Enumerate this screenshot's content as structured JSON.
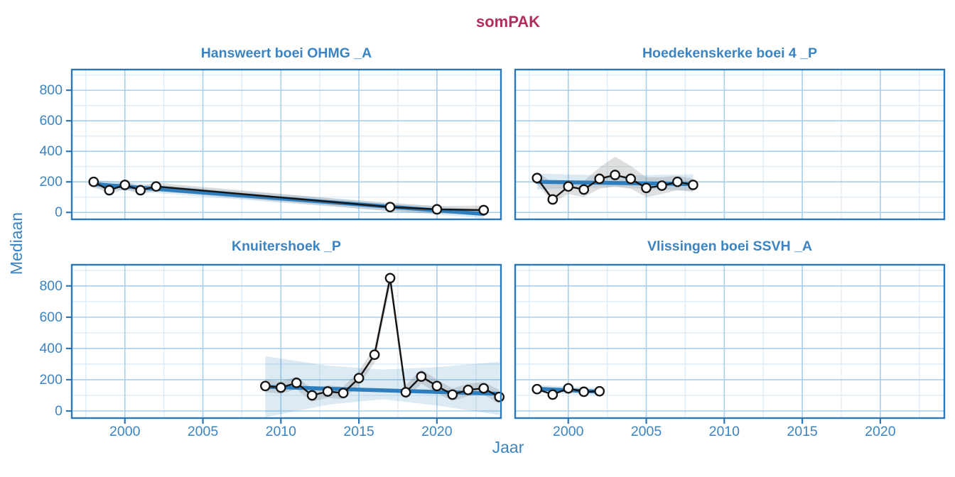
{
  "title": "somPAK",
  "colors": {
    "title": "#b22d5f",
    "axis_text": "#3b84c3",
    "panel_border": "#2e77b5",
    "grid_major": "#a9cfe9",
    "grid_minor": "#dcebf7",
    "trend_line": "#2e7ebd",
    "trend_band": "rgba(49,130,189,0.17)",
    "loess_band": "rgba(110,110,110,0.22)",
    "data_line": "#141414",
    "point_fill": "#ffffff"
  },
  "chart_data": {
    "type": "line",
    "title": "somPAK",
    "xlabel": "Jaar",
    "ylabel": "Mediaan",
    "x_ticks": [
      2000,
      2005,
      2010,
      2015,
      2020
    ],
    "y_ticks": [
      0,
      200,
      400,
      600,
      800
    ],
    "x_range": [
      1996.55,
      2024.15
    ],
    "y_range": [
      -50,
      940
    ],
    "x_minor_step": 2.5,
    "y_minor_step": 100,
    "grid": "on",
    "legend": "none",
    "panels": [
      {
        "title": "Hansweert boei OHMG _A",
        "points": [
          [
            1998,
            200
          ],
          [
            1999,
            145
          ],
          [
            2000,
            180
          ],
          [
            2001,
            145
          ],
          [
            2002,
            170
          ],
          [
            2017,
            35
          ],
          [
            2020,
            20
          ],
          [
            2023,
            15
          ]
        ],
        "trend": [
          [
            1998,
            185
          ],
          [
            2023,
            -10
          ]
        ],
        "trend_band": [
          [
            1998,
            158,
            212
          ],
          [
            2023,
            -38,
            18
          ]
        ],
        "loess_band": [
          [
            1998,
            170,
            225
          ],
          [
            1999,
            120,
            172
          ],
          [
            2000,
            152,
            205
          ],
          [
            2001,
            122,
            170
          ],
          [
            2002,
            140,
            195
          ],
          [
            2017,
            8,
            58
          ],
          [
            2020,
            -8,
            42
          ],
          [
            2023,
            -12,
            45
          ]
        ]
      },
      {
        "title": "Hoedekenskerke boei 4 _P",
        "points": [
          [
            1998,
            225
          ],
          [
            1999,
            85
          ],
          [
            2000,
            170
          ],
          [
            2001,
            150
          ],
          [
            2002,
            220
          ],
          [
            2003,
            245
          ],
          [
            2004,
            220
          ],
          [
            2005,
            160
          ],
          [
            2006,
            175
          ],
          [
            2007,
            200
          ],
          [
            2008,
            180
          ]
        ],
        "trend": [
          [
            1998,
            200
          ],
          [
            2008,
            185
          ]
        ],
        "trend_band": [
          [
            1998,
            150,
            255
          ],
          [
            2003,
            165,
            240
          ],
          [
            2008,
            140,
            250
          ]
        ],
        "loess_band": [
          [
            1998,
            185,
            270
          ],
          [
            1999,
            65,
            190
          ],
          [
            2000,
            120,
            210
          ],
          [
            2001,
            100,
            205
          ],
          [
            2002,
            155,
            295
          ],
          [
            2003,
            170,
            365
          ],
          [
            2004,
            155,
            305
          ],
          [
            2005,
            100,
            230
          ],
          [
            2006,
            120,
            230
          ],
          [
            2007,
            145,
            240
          ],
          [
            2008,
            135,
            220
          ]
        ]
      },
      {
        "title": "Knuitershoek _P",
        "points": [
          [
            2009,
            160
          ],
          [
            2010,
            150
          ],
          [
            2011,
            180
          ],
          [
            2012,
            100
          ],
          [
            2013,
            125
          ],
          [
            2014,
            115
          ],
          [
            2015,
            210
          ],
          [
            2016,
            360
          ],
          [
            2017,
            850
          ],
          [
            2018,
            120
          ],
          [
            2019,
            220
          ],
          [
            2020,
            160
          ],
          [
            2021,
            105
          ],
          [
            2022,
            135
          ],
          [
            2023,
            145
          ],
          [
            2024,
            90
          ]
        ],
        "trend": [
          [
            2009,
            155
          ],
          [
            2024,
            110
          ]
        ],
        "trend_band": [
          [
            2009,
            -40,
            350
          ],
          [
            2013,
            40,
            290
          ],
          [
            2016.5,
            75,
            265
          ],
          [
            2020,
            35,
            280
          ],
          [
            2024,
            -25,
            315
          ]
        ],
        "loess_band": [
          [
            2009,
            120,
            200
          ],
          [
            2010,
            110,
            190
          ],
          [
            2011,
            140,
            220
          ],
          [
            2012,
            60,
            140
          ],
          [
            2013,
            85,
            165
          ],
          [
            2014,
            75,
            155
          ],
          [
            2015,
            165,
            255
          ],
          [
            2016,
            310,
            410
          ],
          [
            2017,
            790,
            900
          ],
          [
            2018,
            75,
            165
          ],
          [
            2019,
            175,
            265
          ],
          [
            2020,
            115,
            200
          ],
          [
            2021,
            65,
            145
          ],
          [
            2022,
            95,
            175
          ],
          [
            2023,
            105,
            185
          ],
          [
            2024,
            45,
            135
          ]
        ]
      },
      {
        "title": "Vlissingen boei SSVH _A",
        "points": [
          [
            1998,
            140
          ],
          [
            1999,
            105
          ],
          [
            2000,
            145
          ],
          [
            2001,
            123
          ],
          [
            2002,
            126
          ]
        ],
        "trend": [
          [
            1998,
            142
          ],
          [
            2002,
            124
          ]
        ],
        "trend_band": [
          [
            1998,
            118,
            166
          ],
          [
            2002,
            100,
            148
          ]
        ]
      }
    ]
  }
}
